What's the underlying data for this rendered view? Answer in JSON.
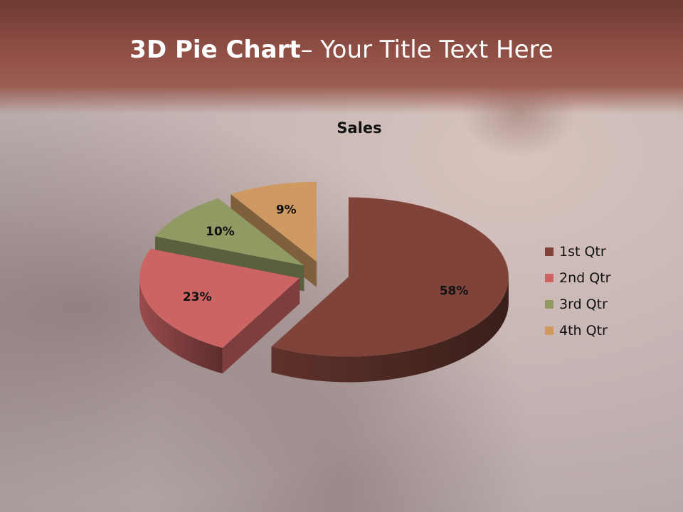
{
  "slide": {
    "title_bold": "3D Pie Chart",
    "title_rest": "– Your Title Text Here"
  },
  "chart_data": {
    "type": "pie",
    "style": "3d-exploded",
    "title": "Sales",
    "categories": [
      "1st Qtr",
      "2nd Qtr",
      "3rd Qtr",
      "4th Qtr"
    ],
    "values": [
      58,
      23,
      10,
      9
    ],
    "data_labels": [
      "58%",
      "23%",
      "10%",
      "9%"
    ],
    "colors": [
      "#7f4339",
      "#cc6464",
      "#909b64",
      "#cf9a62"
    ],
    "legend_position": "right"
  }
}
